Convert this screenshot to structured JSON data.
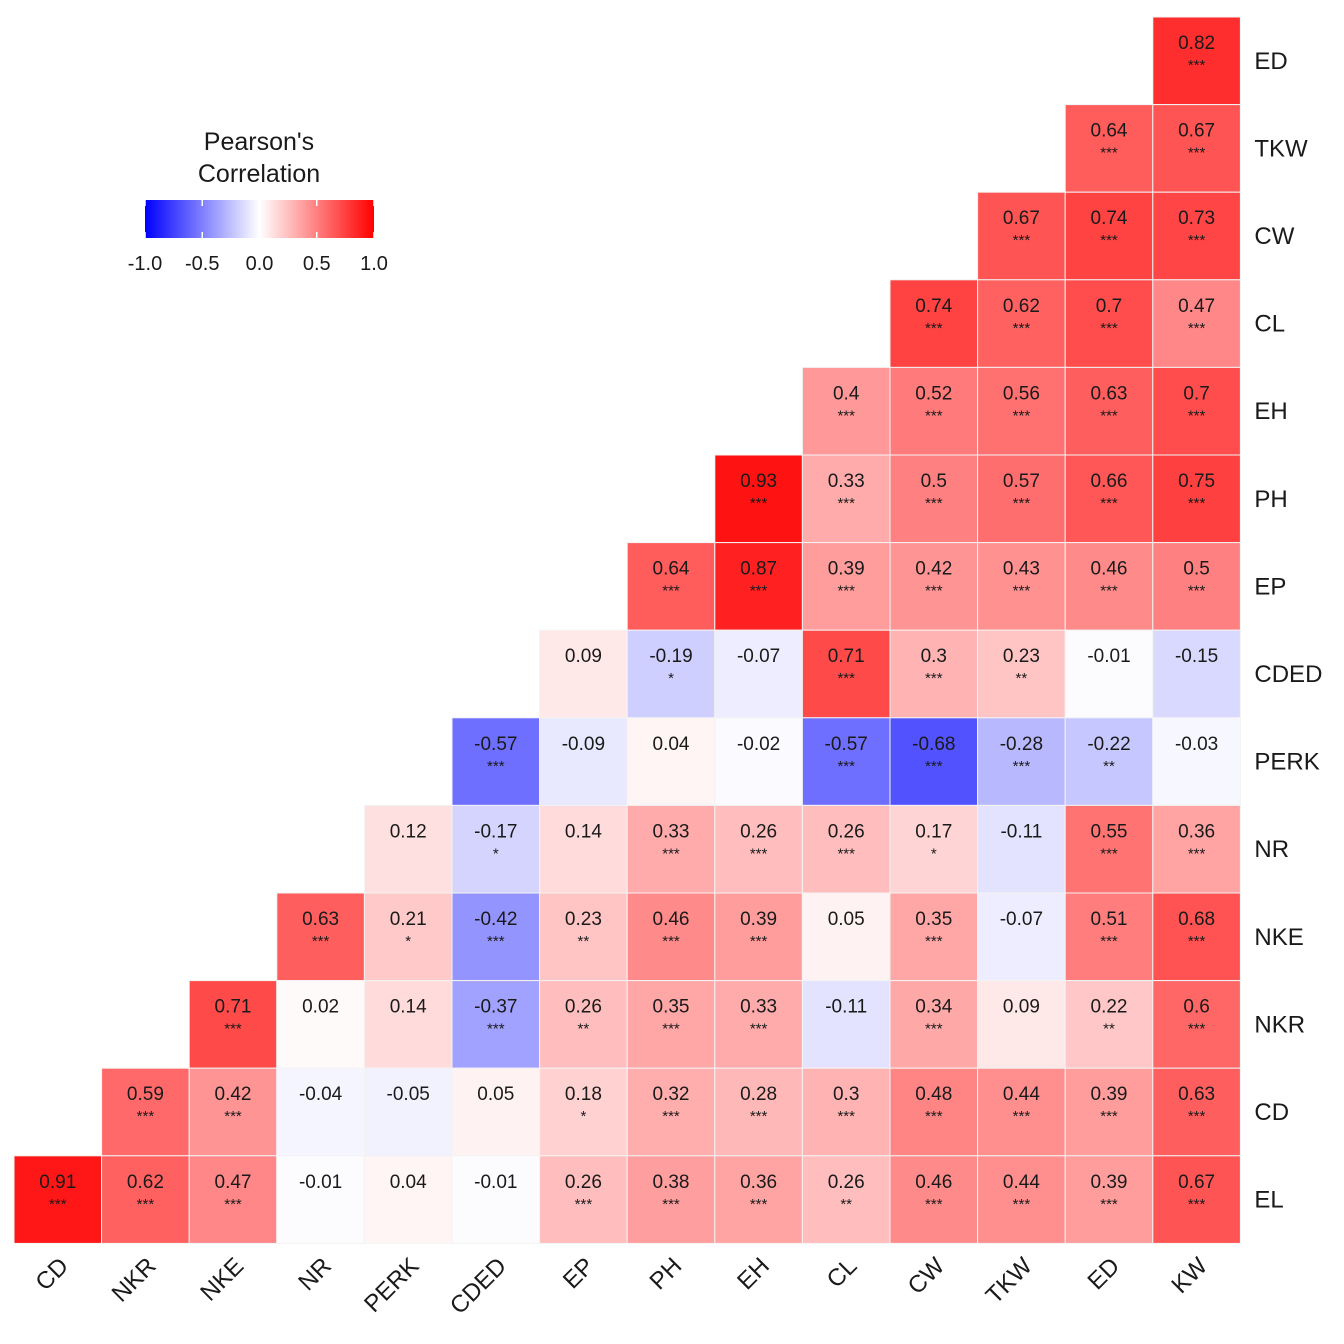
{
  "chart_data": {
    "type": "heatmap",
    "title": "",
    "legend": {
      "title_lines": [
        "Pearson's",
        "Correlation"
      ],
      "ticks": [
        "-1.0",
        "-0.5",
        "0.0",
        "0.5",
        "1.0"
      ],
      "tick_values": [
        -1.0,
        -0.5,
        0.0,
        0.5,
        1.0
      ],
      "range": [
        -1,
        1
      ],
      "colors": {
        "low": "#0000ff",
        "mid": "#ffffff",
        "high": "#ff0000"
      },
      "placement": "top-left"
    },
    "x_categories": [
      "CD",
      "NKR",
      "NKE",
      "NR",
      "PERK",
      "CDED",
      "EP",
      "PH",
      "EH",
      "CL",
      "CW",
      "TKW",
      "ED",
      "KW"
    ],
    "y_categories_top_to_bottom": [
      "ED",
      "TKW",
      "CW",
      "CL",
      "EH",
      "PH",
      "EP",
      "CDED",
      "PERK",
      "NR",
      "NKE",
      "NKR",
      "CD",
      "EL"
    ],
    "rows": [
      {
        "row": "ED",
        "cells": [
          [
            "0.82",
            "***"
          ]
        ]
      },
      {
        "row": "TKW",
        "cells": [
          [
            "0.64",
            "***"
          ],
          [
            "0.67",
            "***"
          ]
        ]
      },
      {
        "row": "CW",
        "cells": [
          [
            "0.67",
            "***"
          ],
          [
            "0.74",
            "***"
          ],
          [
            "0.73",
            "***"
          ]
        ]
      },
      {
        "row": "CL",
        "cells": [
          [
            "0.74",
            "***"
          ],
          [
            "0.62",
            "***"
          ],
          [
            "0.7",
            "***"
          ],
          [
            "0.47",
            "***"
          ]
        ]
      },
      {
        "row": "EH",
        "cells": [
          [
            "0.4",
            "***"
          ],
          [
            "0.52",
            "***"
          ],
          [
            "0.56",
            "***"
          ],
          [
            "0.63",
            "***"
          ],
          [
            "0.7",
            "***"
          ]
        ]
      },
      {
        "row": "PH",
        "cells": [
          [
            "0.93",
            "***"
          ],
          [
            "0.33",
            "***"
          ],
          [
            "0.5",
            "***"
          ],
          [
            "0.57",
            "***"
          ],
          [
            "0.66",
            "***"
          ],
          [
            "0.75",
            "***"
          ]
        ]
      },
      {
        "row": "EP",
        "cells": [
          [
            "0.64",
            "***"
          ],
          [
            "0.87",
            "***"
          ],
          [
            "0.39",
            "***"
          ],
          [
            "0.42",
            "***"
          ],
          [
            "0.43",
            "***"
          ],
          [
            "0.46",
            "***"
          ],
          [
            "0.5",
            "***"
          ]
        ]
      },
      {
        "row": "CDED",
        "cells": [
          [
            "0.09",
            ""
          ],
          [
            "-0.19",
            "*"
          ],
          [
            "-0.07",
            ""
          ],
          [
            "0.71",
            "***"
          ],
          [
            "0.3",
            "***"
          ],
          [
            "0.23",
            "**"
          ],
          [
            "-0.01",
            ""
          ],
          [
            "-0.15",
            ""
          ]
        ]
      },
      {
        "row": "PERK",
        "cells": [
          [
            "-0.57",
            "***"
          ],
          [
            "-0.09",
            ""
          ],
          [
            "0.04",
            ""
          ],
          [
            "-0.02",
            ""
          ],
          [
            "-0.57",
            "***"
          ],
          [
            "-0.68",
            "***"
          ],
          [
            "-0.28",
            "***"
          ],
          [
            "-0.22",
            "**"
          ],
          [
            "-0.03",
            ""
          ]
        ]
      },
      {
        "row": "NR",
        "cells": [
          [
            "0.12",
            ""
          ],
          [
            "-0.17",
            "*"
          ],
          [
            "0.14",
            ""
          ],
          [
            "0.33",
            "***"
          ],
          [
            "0.26",
            "***"
          ],
          [
            "0.26",
            "***"
          ],
          [
            "0.17",
            "*"
          ],
          [
            "-0.11",
            ""
          ],
          [
            "0.55",
            "***"
          ],
          [
            "0.36",
            "***"
          ]
        ]
      },
      {
        "row": "NKE",
        "cells": [
          [
            "0.63",
            "***"
          ],
          [
            "0.21",
            "*"
          ],
          [
            "-0.42",
            "***"
          ],
          [
            "0.23",
            "**"
          ],
          [
            "0.46",
            "***"
          ],
          [
            "0.39",
            "***"
          ],
          [
            "0.05",
            ""
          ],
          [
            "0.35",
            "***"
          ],
          [
            "-0.07",
            ""
          ],
          [
            "0.51",
            "***"
          ],
          [
            "0.68",
            "***"
          ]
        ]
      },
      {
        "row": "NKR",
        "cells": [
          [
            "0.71",
            "***"
          ],
          [
            "0.02",
            ""
          ],
          [
            "0.14",
            ""
          ],
          [
            "-0.37",
            "***"
          ],
          [
            "0.26",
            "**"
          ],
          [
            "0.35",
            "***"
          ],
          [
            "0.33",
            "***"
          ],
          [
            "-0.11",
            ""
          ],
          [
            "0.34",
            "***"
          ],
          [
            "0.09",
            ""
          ],
          [
            "0.22",
            "**"
          ],
          [
            "0.6",
            "***"
          ]
        ]
      },
      {
        "row": "CD",
        "cells": [
          [
            "0.59",
            "***"
          ],
          [
            "0.42",
            "***"
          ],
          [
            "-0.04",
            ""
          ],
          [
            "-0.05",
            ""
          ],
          [
            "0.05",
            ""
          ],
          [
            "0.18",
            "*"
          ],
          [
            "0.32",
            "***"
          ],
          [
            "0.28",
            "***"
          ],
          [
            "0.3",
            "***"
          ],
          [
            "0.48",
            "***"
          ],
          [
            "0.44",
            "***"
          ],
          [
            "0.39",
            "***"
          ],
          [
            "0.63",
            "***"
          ]
        ]
      },
      {
        "row": "EL",
        "cells": [
          [
            "0.91",
            "***"
          ],
          [
            "0.62",
            "***"
          ],
          [
            "0.47",
            "***"
          ],
          [
            "-0.01",
            ""
          ],
          [
            "0.04",
            ""
          ],
          [
            "-0.01",
            ""
          ],
          [
            "0.26",
            "***"
          ],
          [
            "0.38",
            "***"
          ],
          [
            "0.36",
            "***"
          ],
          [
            "0.26",
            "**"
          ],
          [
            "0.46",
            "***"
          ],
          [
            "0.44",
            "***"
          ],
          [
            "0.39",
            "***"
          ],
          [
            "0.67",
            "***"
          ]
        ]
      }
    ]
  }
}
